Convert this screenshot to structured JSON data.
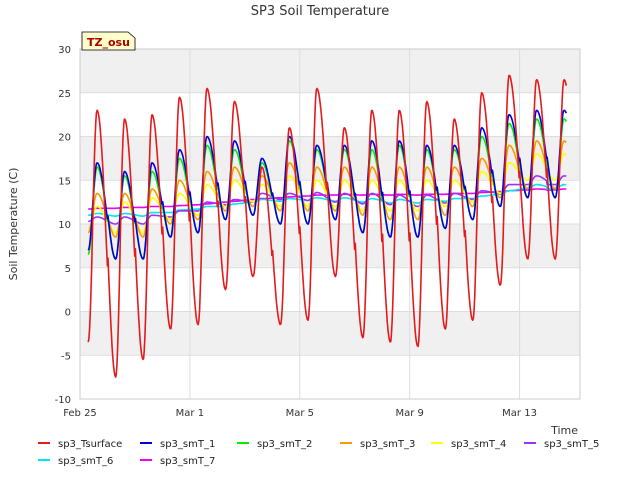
{
  "chart_data": {
    "type": "line",
    "title": "SP3 Soil Temperature",
    "xlabel": "Time",
    "ylabel": "Soil Temperature (C)",
    "ylim": [
      -10,
      30
    ],
    "yticks": [
      -10,
      -5,
      0,
      5,
      10,
      15,
      20,
      25,
      30
    ],
    "xlim": [
      0,
      18.2
    ],
    "xticks": [
      {
        "day": 0,
        "label": "Feb 25"
      },
      {
        "day": 4,
        "label": "Mar 1"
      },
      {
        "day": 8,
        "label": "Mar 5"
      },
      {
        "day": 12,
        "label": "Mar 9"
      },
      {
        "day": 16,
        "label": "Mar 13"
      }
    ],
    "annotation": "TZ_osu",
    "grid": true,
    "x_start_day": 0.3,
    "x_end_day": 17.7,
    "series": [
      {
        "name": "sp3_Tsurface",
        "color": "#e41a1c",
        "mean": 9,
        "amp": 13,
        "daily_peaks": [
          23,
          22,
          22.5,
          24.5,
          25.5,
          24,
          16.5,
          21,
          25.5,
          21,
          23,
          23,
          24,
          22,
          25,
          27,
          26.5
        ],
        "daily_lows": [
          -3.5,
          -7.5,
          -5.5,
          -2,
          -1.5,
          2.5,
          4,
          -1.5,
          -1,
          4,
          -3,
          -3.5,
          -4,
          -2,
          -1,
          3,
          6
        ]
      },
      {
        "name": "sp3_smT_1",
        "color": "#0000dd",
        "daily_peaks": [
          17,
          16,
          17,
          18.5,
          20,
          19.5,
          17.5,
          20,
          19,
          19,
          19.5,
          19.5,
          19,
          19,
          21,
          22.5,
          23
        ],
        "daily_lows": [
          7,
          6,
          6,
          8.5,
          9,
          10.5,
          11,
          10,
          10,
          10.5,
          9,
          8.5,
          8.5,
          9.5,
          10.5,
          12,
          13
        ]
      },
      {
        "name": "sp3_smT_2",
        "color": "#00ee00",
        "daily_peaks": [
          16.5,
          15.5,
          16,
          17.5,
          19,
          18.5,
          17,
          19.5,
          18.5,
          18.5,
          18.5,
          19,
          18.5,
          18.5,
          20,
          21.5,
          22
        ],
        "daily_lows": [
          6.5,
          6,
          6,
          8.5,
          9,
          10.5,
          11,
          10,
          10,
          10.5,
          9,
          8.5,
          8.5,
          9.5,
          10.5,
          12,
          13
        ]
      },
      {
        "name": "sp3_smT_3",
        "color": "#ff9900",
        "daily_peaks": [
          13.5,
          13.5,
          14,
          15,
          16,
          16.5,
          15.5,
          17,
          16.5,
          16.5,
          16.5,
          16.5,
          16.5,
          16.5,
          17.5,
          19,
          19.5
        ],
        "daily_lows": [
          9,
          8.5,
          8.5,
          10,
          10.5,
          11.5,
          12,
          11.5,
          11.5,
          11.5,
          11,
          10.5,
          10.5,
          11,
          12,
          13,
          14
        ]
      },
      {
        "name": "sp3_smT_4",
        "color": "#ffff00",
        "daily_peaks": [
          12,
          12.5,
          13,
          13.5,
          14.5,
          15,
          14.5,
          15.5,
          15,
          15,
          15,
          15,
          15,
          15,
          16,
          17,
          18
        ],
        "daily_lows": [
          9.5,
          9,
          9,
          10.5,
          11,
          12,
          12.5,
          12,
          12,
          12,
          11.5,
          11.5,
          11.5,
          12,
          12.5,
          13.5,
          15
        ]
      },
      {
        "name": "sp3_smT_5",
        "color": "#9933ff",
        "daily_peaks": [
          10.8,
          10.8,
          11,
          11.5,
          12.5,
          12.8,
          13.5,
          13.5,
          13.6,
          13.5,
          13.5,
          13.3,
          13.3,
          13.5,
          13.8,
          14.5,
          15.5
        ],
        "daily_lows": [
          10.3,
          10,
          10,
          10.8,
          11.5,
          12.2,
          12.5,
          12.8,
          12.7,
          12.5,
          12.3,
          12.2,
          12,
          12.4,
          12.8,
          13.5,
          14.5
        ]
      },
      {
        "name": "sp3_smT_6",
        "color": "#00e5ee",
        "daily_peaks": [
          11.2,
          11.2,
          11.3,
          11.6,
          12,
          12.3,
          12.8,
          12.9,
          13,
          13,
          12.9,
          12.8,
          12.8,
          12.9,
          13.2,
          13.8,
          14.5
        ],
        "daily_lows": [
          11,
          10.9,
          10.9,
          11.3,
          11.7,
          12,
          12.5,
          12.6,
          12.7,
          12.6,
          12.5,
          12.4,
          12.4,
          12.6,
          12.9,
          13.4,
          14.1
        ]
      },
      {
        "name": "sp3_smT_7",
        "color": "#ee00ee",
        "daily_peaks": [
          11.8,
          11.9,
          12,
          12.1,
          12.3,
          12.6,
          12.9,
          13.1,
          13.3,
          13.4,
          13.4,
          13.4,
          13.4,
          13.5,
          13.6,
          13.8,
          14
        ],
        "daily_lows": [
          11.7,
          11.8,
          11.9,
          12,
          12.2,
          12.5,
          12.8,
          13,
          13.2,
          13.3,
          13.3,
          13.3,
          13.3,
          13.4,
          13.5,
          13.7,
          13.9
        ]
      }
    ]
  }
}
